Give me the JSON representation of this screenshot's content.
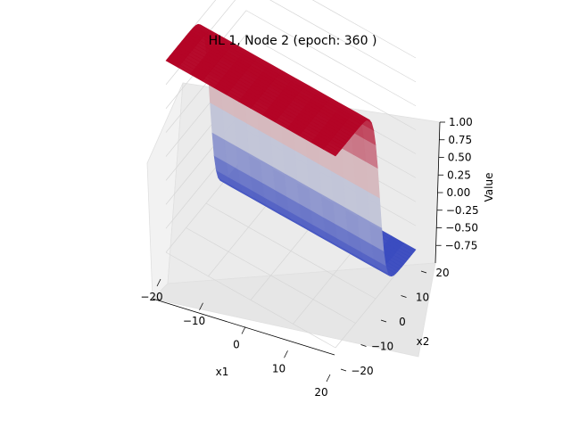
{
  "chart_data": {
    "type": "surface3d",
    "title": "HL 1, Node 2 (epoch: 360 )",
    "xlabel": "x1",
    "ylabel": "x2",
    "zlabel": "Value",
    "xlim": [
      -20,
      20
    ],
    "ylim": [
      -20,
      20
    ],
    "zlim": [
      -1,
      1
    ],
    "x_ticks": [
      "−20",
      "−10",
      "0",
      "10",
      "20"
    ],
    "y_ticks": [
      "−20",
      "−10",
      "0",
      "10",
      "20"
    ],
    "z_ticks": [
      "−0.75",
      "−0.50",
      "−0.25",
      "0.00",
      "0.25",
      "0.50",
      "0.75",
      "1.00"
    ],
    "function": "tanh(-k * x2), sigmoid-shaped step along x2",
    "colormap": "coolwarm",
    "colors": {
      "low": "#3b4cc0",
      "mid": "#dddddd",
      "high": "#b40426"
    },
    "grid": true
  }
}
